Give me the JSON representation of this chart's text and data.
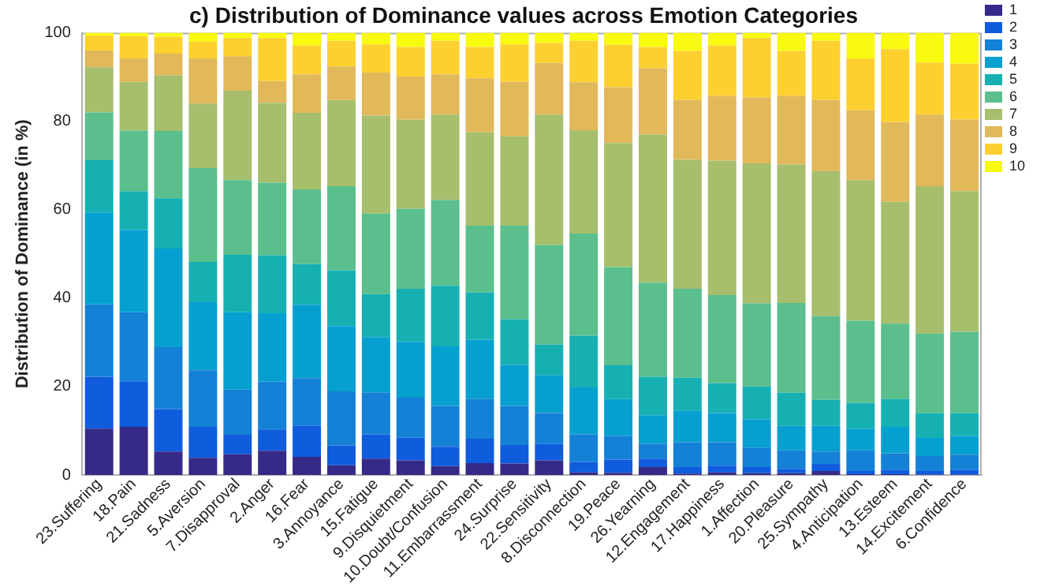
{
  "chart_data": {
    "type": "bar",
    "title": "c) Distribution of Dominance values across Emotion Categories",
    "ylabel": "Distribution of Dominance (in %)",
    "categories": [
      "23.Suffering",
      "18.Pain",
      "21.Sadness",
      "5.Aversion",
      "7.Disapproval",
      "2.Anger",
      "16.Fear",
      "3.Annoyance",
      "15.Fatigue",
      "9.Disquietment",
      "10.Doubt/Confusion",
      "11.Embarrassment",
      "24.Surprise",
      "22.Sensitivity",
      "8.Disconnection",
      "19.Peace",
      "26.Yearning",
      "12.Engagement",
      "17.Happiness",
      "1.Affection",
      "20.Pleasure",
      "25.Sympathy",
      "4.Anticipation",
      "13.Esteem",
      "14.Excitement",
      "6.Confidence"
    ],
    "stacked": true,
    "ylim": [
      0,
      100
    ],
    "yticks": [
      0,
      20,
      40,
      60,
      80,
      100
    ],
    "grid": false,
    "legend": "top right",
    "series": [
      {
        "name": "1",
        "color": "#352a87",
        "values": [
          10.5,
          10.9,
          5.3,
          3.9,
          4.7,
          5.5,
          4.1,
          2.2,
          3.7,
          3.3,
          2.0,
          2.7,
          2.6,
          3.3,
          0.6,
          0.5,
          1.8,
          0.3,
          0.6,
          0.4,
          0.4,
          0.9,
          0.2,
          0.2,
          0.1,
          0.1
        ]
      },
      {
        "name": "2",
        "color": "#0f5cdd",
        "values": [
          11.7,
          10.3,
          9.6,
          7.0,
          4.4,
          4.8,
          7.0,
          4.5,
          5.5,
          5.2,
          4.4,
          5.5,
          4.2,
          3.7,
          2.3,
          3.0,
          1.9,
          1.5,
          1.5,
          1.4,
          1.0,
          1.6,
          0.7,
          1.0,
          0.8,
          1.0
        ]
      },
      {
        "name": "3",
        "color": "#1481d6",
        "values": [
          16.4,
          15.6,
          14.0,
          12.8,
          10.2,
          10.8,
          10.8,
          12.2,
          9.5,
          9.0,
          9.2,
          9.0,
          8.8,
          7.0,
          6.3,
          5.3,
          3.3,
          5.6,
          5.3,
          4.4,
          4.2,
          2.8,
          4.7,
          3.7,
          3.4,
          3.5
        ]
      },
      {
        "name": "4",
        "color": "#06a0d0",
        "values": [
          20.8,
          18.6,
          22.3,
          15.4,
          17.5,
          15.5,
          16.6,
          14.8,
          12.5,
          12.6,
          13.5,
          13.4,
          9.3,
          8.6,
          10.6,
          8.4,
          6.5,
          7.2,
          6.6,
          6.4,
          5.5,
          5.8,
          4.9,
          6.0,
          4.1,
          4.2
        ]
      },
      {
        "name": "5",
        "color": "#17b0b2",
        "values": [
          11.8,
          8.8,
          11.4,
          9.1,
          13.0,
          13.1,
          9.2,
          12.6,
          9.7,
          12.0,
          13.7,
          10.7,
          10.3,
          6.9,
          11.7,
          7.6,
          8.7,
          7.4,
          6.8,
          7.5,
          7.5,
          5.9,
          5.8,
          6.3,
          5.6,
          5.2
        ]
      },
      {
        "name": "6",
        "color": "#5abf8c",
        "values": [
          10.8,
          13.7,
          15.2,
          21.2,
          16.9,
          16.4,
          16.9,
          19.0,
          18.2,
          18.1,
          19.4,
          15.1,
          21.2,
          22.5,
          23.1,
          22.2,
          21.3,
          20.1,
          19.9,
          18.7,
          20.3,
          18.9,
          18.6,
          17.0,
          18.0,
          18.4
        ]
      },
      {
        "name": "7",
        "color": "#a7be6d",
        "values": [
          10.2,
          11.0,
          12.6,
          14.6,
          20.2,
          18.1,
          17.3,
          19.5,
          22.2,
          20.2,
          19.3,
          21.1,
          20.2,
          29.5,
          23.4,
          28.1,
          33.5,
          29.2,
          30.4,
          31.7,
          31.3,
          32.8,
          31.8,
          27.6,
          33.3,
          31.8
        ]
      },
      {
        "name": "8",
        "color": "#e1b95a",
        "values": [
          3.8,
          5.3,
          4.9,
          10.2,
          7.8,
          4.9,
          8.7,
          7.6,
          9.7,
          9.7,
          9.1,
          12.2,
          12.3,
          11.7,
          10.8,
          12.6,
          15.0,
          13.5,
          14.6,
          14.9,
          15.5,
          16.1,
          15.8,
          18.0,
          16.2,
          16.2
        ]
      },
      {
        "name": "9",
        "color": "#fdd030",
        "values": [
          3.4,
          5.0,
          3.8,
          3.8,
          4.1,
          9.7,
          6.5,
          5.8,
          6.4,
          6.7,
          7.6,
          7.1,
          8.5,
          4.5,
          9.4,
          9.6,
          4.8,
          11.1,
          11.4,
          13.4,
          10.2,
          13.4,
          11.7,
          16.5,
          11.8,
          12.6
        ]
      },
      {
        "name": "10",
        "color": "#f8fa0f",
        "values": [
          0.6,
          0.8,
          0.9,
          2.0,
          1.2,
          1.2,
          2.9,
          1.8,
          2.6,
          3.2,
          1.8,
          3.2,
          2.6,
          2.3,
          1.8,
          2.7,
          3.2,
          4.1,
          2.9,
          1.2,
          4.1,
          1.8,
          5.8,
          3.7,
          6.7,
          7.0
        ]
      }
    ]
  }
}
